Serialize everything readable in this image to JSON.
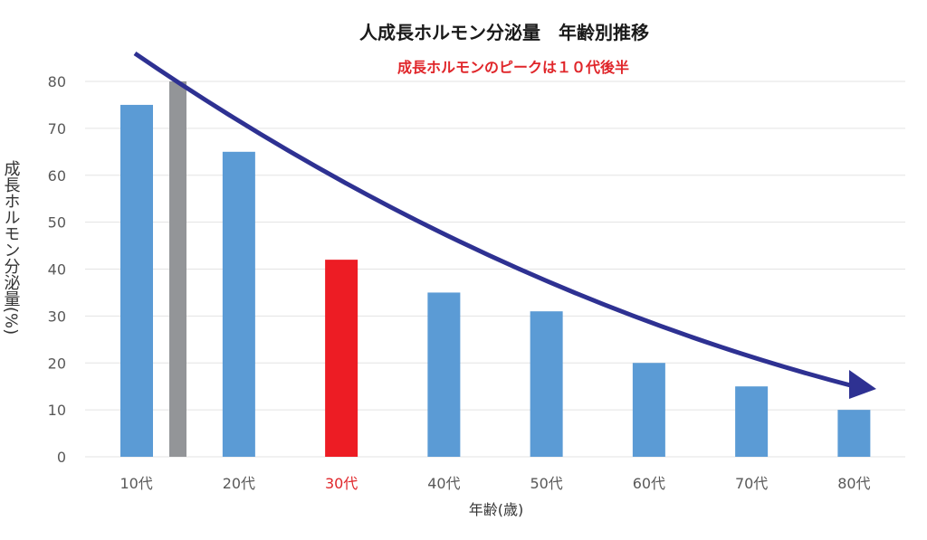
{
  "chart_data": {
    "type": "bar",
    "title": "人成長ホルモン分泌量　年齢別推移",
    "subtitle": "成長ホルモンのピークは１０代後半",
    "xlabel": "年齢(歳)",
    "ylabel": "成長ホルモン分泌量(%)",
    "ylim": [
      0,
      80
    ],
    "yticks": [
      0,
      10,
      20,
      30,
      40,
      50,
      60,
      70,
      80
    ],
    "grid": true,
    "categories": [
      "10代",
      "20代",
      "30代",
      "40代",
      "50代",
      "60代",
      "70代",
      "80代"
    ],
    "highlight_category": "30代",
    "bars": [
      {
        "category": "10代",
        "value": 75,
        "color": "#5b9bd5"
      },
      {
        "category": "10代",
        "value": 80,
        "color": "#939598",
        "note": "peak (late teens)"
      },
      {
        "category": "20代",
        "value": 65,
        "color": "#5b9bd5"
      },
      {
        "category": "30代",
        "value": 42,
        "color": "#ed1c24"
      },
      {
        "category": "40代",
        "value": 35,
        "color": "#5b9bd5"
      },
      {
        "category": "50代",
        "value": 31,
        "color": "#5b9bd5"
      },
      {
        "category": "60代",
        "value": 20,
        "color": "#5b9bd5"
      },
      {
        "category": "70代",
        "value": 15,
        "color": "#5b9bd5"
      },
      {
        "category": "80代",
        "value": 10,
        "color": "#5b9bd5"
      }
    ],
    "trend_arrow": {
      "color": "#2e3192",
      "direction": "decreasing"
    }
  },
  "colors": {
    "subtitle": "#e0262a",
    "highlight_label": "#e0262a",
    "tick": "#595959",
    "grid": "#e3e3e3"
  }
}
